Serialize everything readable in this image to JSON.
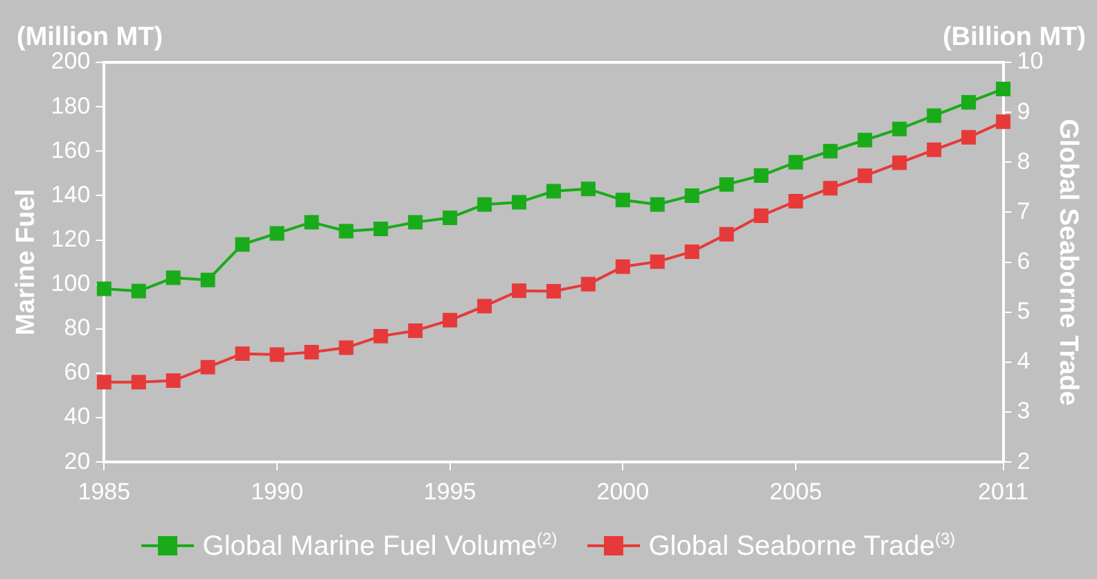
{
  "chart_data": {
    "type": "line",
    "ylabel": "Marine Fuel",
    "y2label": "Global Seaborne Trade",
    "annotations": [
      "(Million MT)",
      "(Billion MT)"
    ],
    "categories": [
      "1985",
      null,
      null,
      null,
      null,
      "1990",
      null,
      null,
      null,
      null,
      "1995",
      null,
      null,
      null,
      null,
      "2000",
      null,
      null,
      null,
      null,
      "2005",
      null,
      null,
      null,
      null,
      null,
      "2011"
    ],
    "series": [
      {
        "name": "Global Marine Fuel Volume$^{(2)}$",
        "color": "#1aab1a",
        "values": [
          98,
          97,
          103,
          102,
          118,
          123,
          128,
          124,
          125,
          128,
          130,
          136,
          137,
          142,
          143,
          138,
          136,
          140,
          145,
          149,
          155,
          160,
          165,
          170,
          176,
          182,
          188
        ]
      },
      {
        "name": "Global Seaborne Trade$^{(3)}$",
        "color": "#e63a3a",
        "axis": "y2",
        "values": [
          3.6,
          3.6,
          3.63,
          3.9,
          4.17,
          4.15,
          4.2,
          4.29,
          4.52,
          4.63,
          4.84,
          5.12,
          5.43,
          5.42,
          5.56,
          5.91,
          6.01,
          6.21,
          6.56,
          6.93,
          7.22,
          7.48,
          7.73,
          7.99,
          8.25,
          8.5,
          8.81
        ]
      }
    ],
    "ylim": [
      20,
      200
    ],
    "yticks": [
      20,
      40,
      60,
      80,
      100,
      120,
      140,
      160,
      180,
      200
    ],
    "y2lim": [
      2,
      10
    ],
    "y2ticks": [
      2,
      3,
      4,
      5,
      6,
      7,
      8,
      9,
      10
    ],
    "grid": false,
    "legend": "bottom",
    "marker": "square",
    "line_style": "solid"
  }
}
